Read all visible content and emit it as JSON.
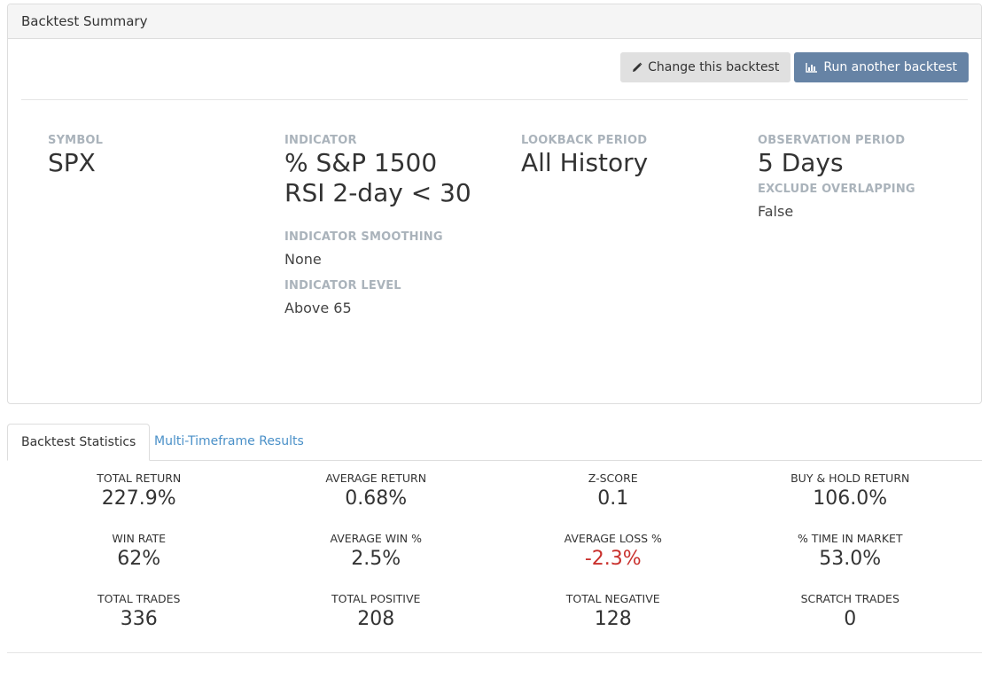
{
  "panel": {
    "title": "Backtest Summary",
    "buttons": {
      "change_label": "Change this backtest",
      "run_label": "Run another backtest"
    }
  },
  "summary": {
    "symbol": {
      "label": "SYMBOL",
      "value": "SPX"
    },
    "indicator": {
      "label": "INDICATOR",
      "value_line1": "% S&P 1500",
      "value_line2": "RSI 2-day < 30",
      "smoothing_label": "INDICATOR SMOOTHING",
      "smoothing_value": "None",
      "level_label": "INDICATOR LEVEL",
      "level_value": "Above 65"
    },
    "lookback": {
      "label": "LOOKBACK PERIOD",
      "value": "All History"
    },
    "observation": {
      "label": "OBSERVATION PERIOD",
      "value": "5 Days",
      "exclude_label": "EXCLUDE OVERLAPPING",
      "exclude_value": "False"
    }
  },
  "tabs": [
    {
      "label": "Backtest Statistics",
      "active": true
    },
    {
      "label": "Multi-Timeframe Results",
      "active": false
    }
  ],
  "stats": [
    {
      "label": "TOTAL RETURN",
      "value": "227.9%"
    },
    {
      "label": "AVERAGE RETURN",
      "value": "0.68%"
    },
    {
      "label": "Z-SCORE",
      "value": "0.1"
    },
    {
      "label": "BUY & HOLD RETURN",
      "value": "106.0%"
    },
    {
      "label": "WIN RATE",
      "value": "62%"
    },
    {
      "label": "AVERAGE WIN %",
      "value": "2.5%"
    },
    {
      "label": "AVERAGE LOSS %",
      "value": "-2.3%"
    },
    {
      "label": "% TIME IN MARKET",
      "value": "53.0%"
    },
    {
      "label": "TOTAL TRADES",
      "value": "336"
    },
    {
      "label": "TOTAL POSITIVE",
      "value": "208"
    },
    {
      "label": "TOTAL NEGATIVE",
      "value": "128"
    },
    {
      "label": "SCRATCH TRADES",
      "value": "0"
    }
  ],
  "colors": {
    "negative": "#c9302c",
    "primary_button": "#6683a5",
    "link": "#4a90c8"
  }
}
